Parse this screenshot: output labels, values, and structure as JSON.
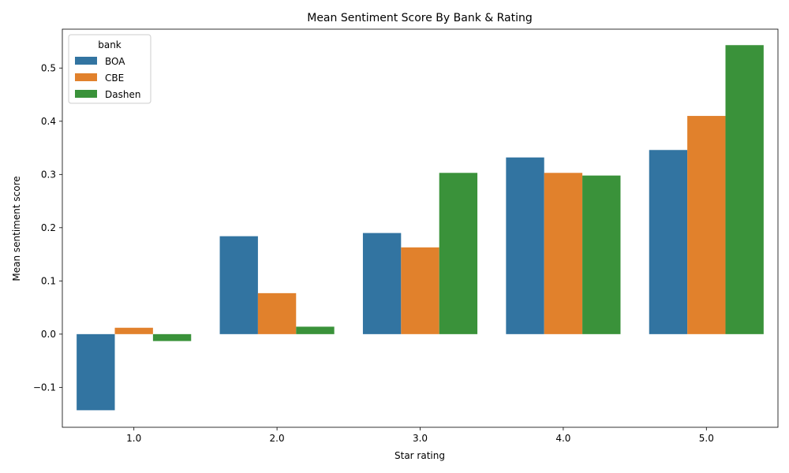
{
  "chart_data": {
    "type": "bar",
    "title": "Mean Sentiment Score By Bank & Rating",
    "xlabel": "Star rating",
    "ylabel": "Mean sentiment score",
    "categories": [
      "1.0",
      "2.0",
      "3.0",
      "4.0",
      "5.0"
    ],
    "series": [
      {
        "name": "BOA",
        "color": "#3274a1",
        "values": [
          -0.143,
          0.184,
          0.19,
          0.332,
          0.346
        ]
      },
      {
        "name": "CBE",
        "color": "#e1812c",
        "values": [
          0.012,
          0.077,
          0.163,
          0.303,
          0.41
        ]
      },
      {
        "name": "Dashen",
        "color": "#3a923a",
        "values": [
          -0.013,
          0.014,
          0.303,
          0.298,
          0.543
        ]
      }
    ],
    "ylim": [
      -0.175,
      0.573
    ],
    "yticks": [
      -0.1,
      0.0,
      0.1,
      0.2,
      0.3,
      0.4,
      0.5
    ],
    "ytick_labels": [
      "−0.1",
      "0.0",
      "0.1",
      "0.2",
      "0.3",
      "0.4",
      "0.5"
    ],
    "legend": {
      "title": "bank",
      "placement": "top-left"
    },
    "grid": false
  }
}
